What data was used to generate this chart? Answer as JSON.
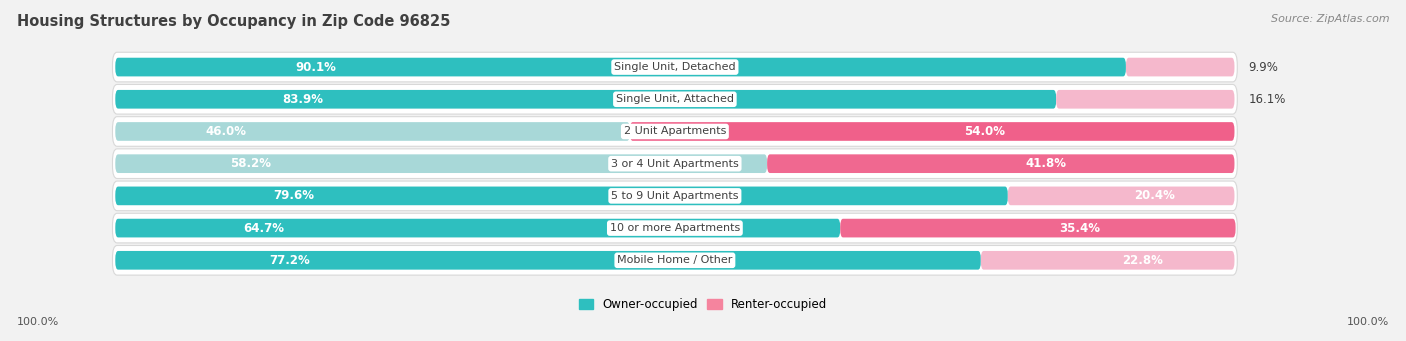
{
  "title": "Housing Structures by Occupancy in Zip Code 96825",
  "source": "Source: ZipAtlas.com",
  "categories": [
    "Single Unit, Detached",
    "Single Unit, Attached",
    "2 Unit Apartments",
    "3 or 4 Unit Apartments",
    "5 to 9 Unit Apartments",
    "10 or more Apartments",
    "Mobile Home / Other"
  ],
  "owner_pct": [
    90.1,
    83.9,
    46.0,
    58.2,
    79.6,
    64.7,
    77.2
  ],
  "renter_pct": [
    9.9,
    16.1,
    54.0,
    41.8,
    20.4,
    35.4,
    22.8
  ],
  "owner_colors": [
    "#2ebfbf",
    "#2ebfbf",
    "#a8d8d8",
    "#a8d8d8",
    "#2ebfbf",
    "#2ebfbf",
    "#2ebfbf"
  ],
  "renter_colors": [
    "#f5b8cc",
    "#f5b8cc",
    "#f0608a",
    "#f06890",
    "#f5b8cc",
    "#f06890",
    "#f5b8cc"
  ],
  "bg_color": "#f2f2f2",
  "row_bg": "#ffffff",
  "row_border": "#d8d8d8",
  "owner_legend_color": "#2ebfbf",
  "renter_legend_color": "#f5849e",
  "title_fontsize": 10.5,
  "source_fontsize": 8,
  "bar_label_fontsize": 8.5,
  "category_fontsize": 8,
  "legend_fontsize": 8.5,
  "footer_fontsize": 8
}
